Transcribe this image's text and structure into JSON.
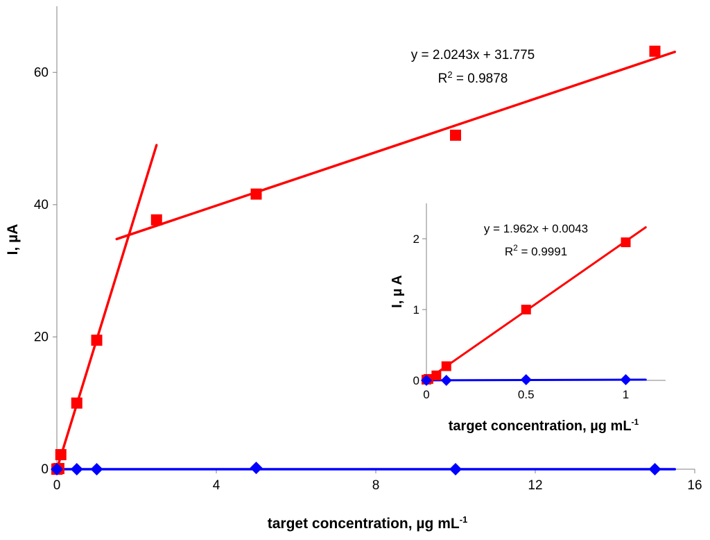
{
  "chart_data": [
    {
      "type": "scatter",
      "xlabel": "target concentration, µg mL",
      "xlabel_sup": "-1",
      "ylabel": "I, µA",
      "xlim": [
        0,
        16
      ],
      "ylim": [
        0,
        70
      ],
      "x_ticks": [
        0,
        4,
        8,
        12,
        16
      ],
      "y_ticks": [
        0,
        20,
        40,
        60
      ],
      "grid": false,
      "series": [
        {
          "color": "#ff0000",
          "marker": "square",
          "points": [
            [
              0,
              0
            ],
            [
              0.01,
              0.05
            ],
            [
              0.05,
              0.1
            ],
            [
              0.1,
              2.2
            ],
            [
              0.5,
              10
            ],
            [
              1,
              19.5
            ],
            [
              2.5,
              37.7
            ],
            [
              5,
              41.6
            ],
            [
              10,
              50.5
            ],
            [
              15,
              63.2
            ]
          ]
        },
        {
          "color": "#0000ff",
          "marker": "diamond",
          "points": [
            [
              0,
              0
            ],
            [
              0.5,
              0
            ],
            [
              1,
              0
            ],
            [
              5,
              0.2
            ],
            [
              10,
              0
            ],
            [
              15,
              0
            ]
          ]
        }
      ],
      "trendlines": [
        {
          "color": "#ff0000",
          "x": [
            0,
            2.5
          ],
          "y": [
            0,
            49
          ]
        },
        {
          "color": "#ff0000",
          "x": [
            1.5,
            15.5
          ],
          "y": [
            34.8,
            63.1
          ]
        },
        {
          "color": "#0000ff",
          "x": [
            0,
            15.5
          ],
          "y": [
            0,
            0
          ]
        }
      ],
      "annotations": {
        "eq_line": "y = 2.0243x + 31.775",
        "r2_prefix": "R",
        "r2_sup": "2",
        "r2_value": " = 0.9878"
      }
    },
    {
      "type": "scatter",
      "xlabel": "target concentration, µg mL",
      "xlabel_sup": "-1",
      "ylabel": "I, µ A",
      "xlim": [
        0,
        1.2
      ],
      "ylim": [
        0,
        2.5
      ],
      "x_ticks": [
        0,
        0.5,
        1
      ],
      "y_ticks": [
        0,
        1,
        2
      ],
      "grid": false,
      "series": [
        {
          "color": "#ff0000",
          "marker": "square",
          "points": [
            [
              0,
              0.01
            ],
            [
              0.01,
              0.02
            ],
            [
              0.05,
              0.07
            ],
            [
              0.1,
              0.2
            ],
            [
              0.5,
              1.0
            ],
            [
              1,
              1.95
            ]
          ]
        },
        {
          "color": "#0000ff",
          "marker": "diamond",
          "points": [
            [
              0,
              0.0
            ],
            [
              0.1,
              0.0
            ],
            [
              0.5,
              0.01
            ],
            [
              1,
              0.01
            ]
          ]
        }
      ],
      "trendlines": [
        {
          "color": "#ff0000",
          "x": [
            0,
            1.1
          ],
          "y": [
            0.004,
            2.162
          ]
        },
        {
          "color": "#0000ff",
          "x": [
            0,
            1.1
          ],
          "y": [
            0,
            0.01
          ]
        }
      ],
      "annotations": {
        "eq_line": "y = 1.962x + 0.0043",
        "r2_prefix": "R",
        "r2_sup": "2",
        "r2_value": " = 0.9991"
      }
    }
  ]
}
